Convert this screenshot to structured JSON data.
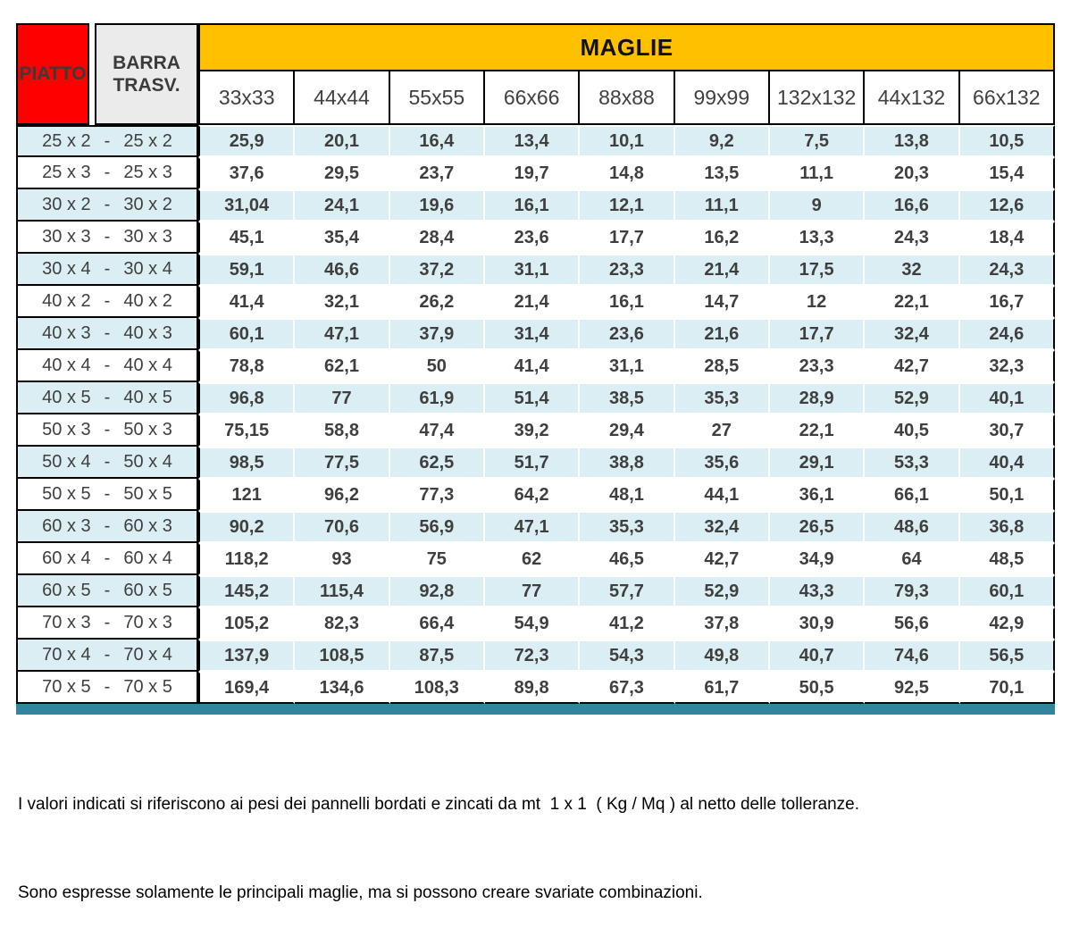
{
  "header": {
    "piatto_label": "PIATTO",
    "barra_label": "BARRA TRASV.",
    "maglie_label": "MAGLIE"
  },
  "table": {
    "mesh_columns": [
      "33x33",
      "44x44",
      "55x55",
      "66x66",
      "88x88",
      "99x99",
      "132x132",
      "44x132",
      "66x132"
    ],
    "row_separator": "-",
    "rows": [
      {
        "piatto": "25 x 2",
        "barra": "25 x 2",
        "values": [
          "25,9",
          "20,1",
          "16,4",
          "13,4",
          "10,1",
          "9,2",
          "7,5",
          "13,8",
          "10,5"
        ]
      },
      {
        "piatto": "25 x 3",
        "barra": "25 x 3",
        "values": [
          "37,6",
          "29,5",
          "23,7",
          "19,7",
          "14,8",
          "13,5",
          "11,1",
          "20,3",
          "15,4"
        ]
      },
      {
        "piatto": "30 x 2",
        "barra": "30 x 2",
        "values": [
          "31,04",
          "24,1",
          "19,6",
          "16,1",
          "12,1",
          "11,1",
          "9",
          "16,6",
          "12,6"
        ]
      },
      {
        "piatto": "30 x 3",
        "barra": "30 x 3",
        "values": [
          "45,1",
          "35,4",
          "28,4",
          "23,6",
          "17,7",
          "16,2",
          "13,3",
          "24,3",
          "18,4"
        ]
      },
      {
        "piatto": "30 x 4",
        "barra": "30 x 4",
        "values": [
          "59,1",
          "46,6",
          "37,2",
          "31,1",
          "23,3",
          "21,4",
          "17,5",
          "32",
          "24,3"
        ]
      },
      {
        "piatto": "40 x 2",
        "barra": "40 x 2",
        "values": [
          "41,4",
          "32,1",
          "26,2",
          "21,4",
          "16,1",
          "14,7",
          "12",
          "22,1",
          "16,7"
        ]
      },
      {
        "piatto": "40 x 3",
        "barra": "40 x 3",
        "values": [
          "60,1",
          "47,1",
          "37,9",
          "31,4",
          "23,6",
          "21,6",
          "17,7",
          "32,4",
          "24,6"
        ]
      },
      {
        "piatto": "40 x 4",
        "barra": "40 x 4",
        "values": [
          "78,8",
          "62,1",
          "50",
          "41,4",
          "31,1",
          "28,5",
          "23,3",
          "42,7",
          "32,3"
        ]
      },
      {
        "piatto": "40 x 5",
        "barra": "40 x 5",
        "values": [
          "96,8",
          "77",
          "61,9",
          "51,4",
          "38,5",
          "35,3",
          "28,9",
          "52,9",
          "40,1"
        ]
      },
      {
        "piatto": "50 x 3",
        "barra": "50 x 3",
        "values": [
          "75,15",
          "58,8",
          "47,4",
          "39,2",
          "29,4",
          "27",
          "22,1",
          "40,5",
          "30,7"
        ]
      },
      {
        "piatto": "50 x 4",
        "barra": "50 x 4",
        "values": [
          "98,5",
          "77,5",
          "62,5",
          "51,7",
          "38,8",
          "35,6",
          "29,1",
          "53,3",
          "40,4"
        ]
      },
      {
        "piatto": "50 x 5",
        "barra": "50 x 5",
        "values": [
          "121",
          "96,2",
          "77,3",
          "64,2",
          "48,1",
          "44,1",
          "36,1",
          "66,1",
          "50,1"
        ]
      },
      {
        "piatto": "60 x 3",
        "barra": "60 x 3",
        "values": [
          "90,2",
          "70,6",
          "56,9",
          "47,1",
          "35,3",
          "32,4",
          "26,5",
          "48,6",
          "36,8"
        ]
      },
      {
        "piatto": "60 x 4",
        "barra": "60 x 4",
        "values": [
          "118,2",
          "93",
          "75",
          "62",
          "46,5",
          "42,7",
          "34,9",
          "64",
          "48,5"
        ]
      },
      {
        "piatto": "60 x 5",
        "barra": "60 x 5",
        "values": [
          "145,2",
          "115,4",
          "92,8",
          "77",
          "57,7",
          "52,9",
          "43,3",
          "79,3",
          "60,1"
        ]
      },
      {
        "piatto": "70 x 3",
        "barra": "70 x 3",
        "values": [
          "105,2",
          "82,3",
          "66,4",
          "54,9",
          "41,2",
          "37,8",
          "30,9",
          "56,6",
          "42,9"
        ]
      },
      {
        "piatto": "70 x 4",
        "barra": "70 x 4",
        "values": [
          "137,9",
          "108,5",
          "87,5",
          "72,3",
          "54,3",
          "49,8",
          "40,7",
          "74,6",
          "56,5"
        ]
      },
      {
        "piatto": "70 x 5",
        "barra": "70 x 5",
        "values": [
          "169,4",
          "134,6",
          "108,3",
          "89,8",
          "67,3",
          "61,7",
          "50,5",
          "92,5",
          "70,1"
        ]
      }
    ]
  },
  "colors": {
    "piatto_bg": "#FE0000",
    "barra_bg": "#EBEBEB",
    "maglie_bg": "#FFC000",
    "row_blue": "#DAEEF3",
    "row_white": "#FFFFFF",
    "bottom_bar": "#31859C",
    "text_dark": "#3F3F3F"
  },
  "footer": {
    "line1": "I valori indicati si riferiscono ai pesi dei pannelli bordati e zincati da mt  1 x 1  ( Kg / Mq ) al netto delle tolleranze.",
    "line2": "Sono espresse solamente le principali maglie, ma si possono creare svariate combinazioni."
  }
}
